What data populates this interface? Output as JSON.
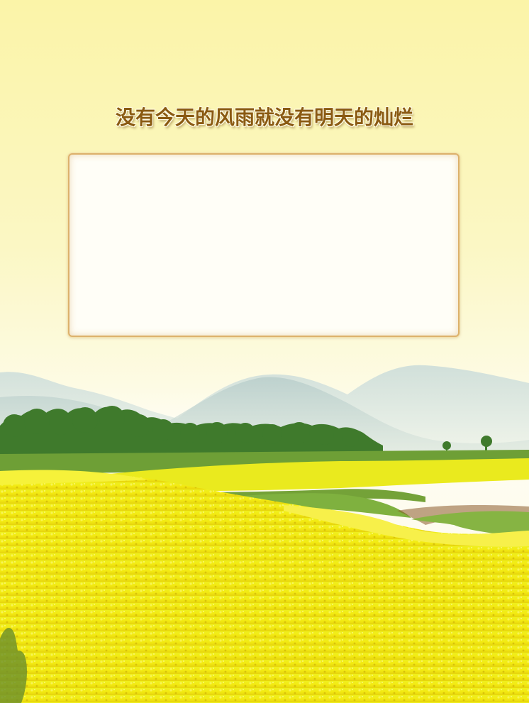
{
  "headline": {
    "text": "没有今天的风雨就没有明天的灿烂"
  },
  "content_frame": {
    "text": ""
  },
  "colors": {
    "sky_top": "#fbf4a8",
    "sky_bottom": "#fefdf2",
    "headline_text": "#8a5a12",
    "frame_border": "#dcb16b",
    "frame_fill": "#fffef7",
    "field_yellow": "#f2ea1a",
    "tree_green": "#3f7a2c"
  }
}
